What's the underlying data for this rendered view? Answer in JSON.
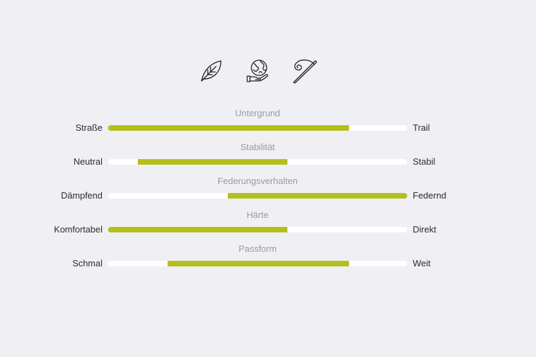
{
  "accent_color": "#b5bf1c",
  "icons": [
    "leaf-icon",
    "earth-in-hand-icon",
    "needle-thread-icon"
  ],
  "scales": [
    {
      "title": "Untergrund",
      "left_label": "Straße",
      "right_label": "Trail",
      "range": [
        0.0,
        0.806
      ]
    },
    {
      "title": "Stabilität",
      "left_label": "Neutral",
      "right_label": "Stabil",
      "range": [
        0.1,
        0.6
      ]
    },
    {
      "title": "Federungsverhalten",
      "left_label": "Dämpfend",
      "right_label": "Federnd",
      "range": [
        0.4,
        1.0
      ]
    },
    {
      "title": "Härte",
      "left_label": "Komfortabel",
      "right_label": "Direkt",
      "range": [
        0.0,
        0.6
      ]
    },
    {
      "title": "Passform",
      "left_label": "Schmal",
      "right_label": "Weit",
      "range": [
        0.2,
        0.806
      ]
    }
  ]
}
